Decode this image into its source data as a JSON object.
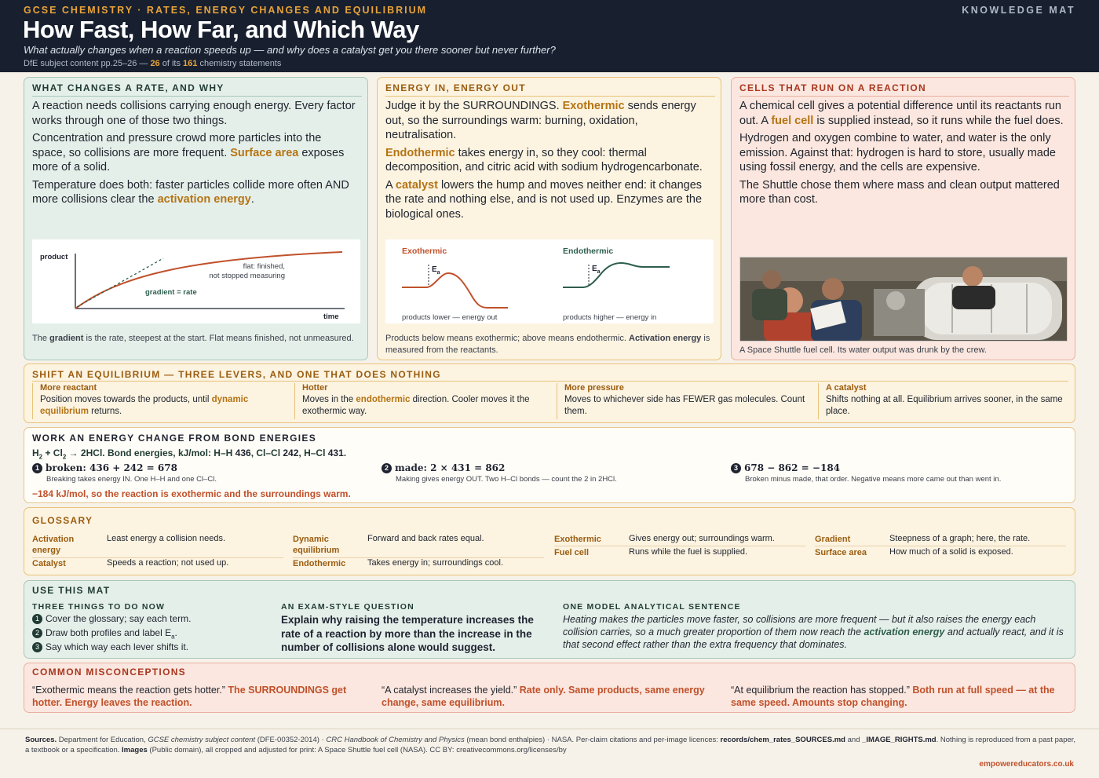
{
  "header": {
    "eyebrow": "GCSE CHEMISTRY · RATES, ENERGY CHANGES AND EQUILIBRIUM",
    "tag": "KNOWLEDGE MAT",
    "title": "How Fast, How Far, and Which Way",
    "subtitle": "What actually changes when a reaction speeds up — and why does a catalyst get you there sooner but never further?",
    "meta_prefix": "DfE subject content pp.25–26 — ",
    "meta_count": "26",
    "meta_mid": " of its ",
    "meta_total": "161",
    "meta_suffix": " chemistry statements"
  },
  "rate": {
    "title": "WHAT CHANGES A RATE, AND WHY",
    "p1": "A reaction needs collisions carrying enough energy. Every factor works through one of those two things.",
    "p2a": "Concentration and pressure crowd more particles into the space, so collisions are more frequent. ",
    "p2b": "Surface area",
    "p2c": " exposes more of a solid.",
    "p3a": "Temperature does both: faster particles collide more often AND more collisions clear the ",
    "p3b": "activation energy",
    "p3c": ".",
    "graph": {
      "ylabel": "product",
      "xlabel": "time",
      "flat_label_1": "flat: finished,",
      "flat_label_2": "not stopped measuring",
      "gradient_label": "gradient = rate"
    },
    "cap_a": "The ",
    "cap_b": "gradient",
    "cap_c": " is the rate, steepest at the start. Flat means finished, not unmeasured."
  },
  "energy": {
    "title": "ENERGY IN, ENERGY OUT",
    "p1a": "Judge it by the SURROUNDINGS. ",
    "p1b": "Exothermic",
    "p1c": " sends energy out, so the surroundings warm: burning, oxidation, neutralisation.",
    "p2a": "Endothermic",
    "p2b": " takes energy in, so they cool: thermal decomposition, and citric acid with sodium hydrogencarbonate.",
    "p3a": "A ",
    "p3b": "catalyst",
    "p3c": " lowers the hump and moves neither end: it changes the rate and nothing else, and is not used up. Enzymes are the biological ones.",
    "exo_label": "Exothermic",
    "endo_label": "Endothermic",
    "ea": "E",
    "ea_sub": "a",
    "exo_caption": "products lower — energy out",
    "endo_caption": "products higher — energy in",
    "cap_a": "Products below means exothermic; above means endothermic. ",
    "cap_b": "Activation energy",
    "cap_c": " is measured from the reactants."
  },
  "cells": {
    "title": "CELLS THAT RUN ON A REACTION",
    "p1a": "A chemical cell gives a potential difference until its reactants run out. A ",
    "p1b": "fuel cell",
    "p1c": " is supplied instead, so it runs while the fuel does.",
    "p2": "Hydrogen and oxygen combine to water, and water is the only emission. Against that: hydrogen is hard to store, usually made using fossil energy, and the cells are expensive.",
    "p3": "The Shuttle chose them where mass and clean output mattered more than cost.",
    "photo_caption": "A Space Shuttle fuel cell. Its water output was drunk by the crew."
  },
  "equilibrium": {
    "title": "SHIFT AN EQUILIBRIUM — THREE LEVERS, AND ONE THAT DOES NOTHING",
    "levers": [
      {
        "title": "More reactant",
        "d1": "Position moves towards the products, until ",
        "hl": "dynamic equilibrium",
        "d2": " returns."
      },
      {
        "title": "Hotter",
        "d1": "Moves in the ",
        "hl": "endothermic",
        "d2": " direction. Cooler moves it the exothermic way."
      },
      {
        "title": "More pressure",
        "d1": "Moves to whichever side has FEWER gas molecules. Count them.",
        "hl": "",
        "d2": ""
      },
      {
        "title": "A catalyst",
        "d1": "Shifts nothing at all. Equilibrium arrives sooner, in the same place.",
        "hl": "",
        "d2": ""
      }
    ]
  },
  "bond": {
    "title": "WORK AN ENERGY CHANGE FROM BOND ENERGIES",
    "eq_main": "H",
    "eq_text": " + Cl",
    "eq_rest": " → 2HCl. Bond energies, kJ/mol: H–H ",
    "hh": "436",
    "clcl_t": ", Cl–Cl ",
    "clcl": "242",
    "hcl_t": ", H–Cl ",
    "hcl": "431",
    "eq_end": ".",
    "steps": [
      {
        "n": "1",
        "head": "broken: 436 + 242 = 678",
        "desc": "Breaking takes energy IN. One H–H and one Cl–Cl."
      },
      {
        "n": "2",
        "head": "made: 2 × 431 = 862",
        "desc": "Making gives energy OUT. Two H–Cl bonds — count the 2 in 2HCl."
      },
      {
        "n": "3",
        "head": "678 − 862 = −184",
        "desc": "Broken minus made, that order. Negative means more came out than went in."
      }
    ],
    "conclusion": "−184 kJ/mol, so the reaction is exothermic and the surroundings warm."
  },
  "glossary": {
    "title": "GLOSSARY",
    "items": [
      {
        "term": "Activation energy",
        "def": "Least energy a collision needs."
      },
      {
        "term": "Catalyst",
        "def": "Speeds a reaction; not used up."
      },
      {
        "term": "Dynamic equilibrium",
        "def": "Forward and back rates equal."
      },
      {
        "term": "Endothermic",
        "def": "Takes energy in; surroundings cool."
      },
      {
        "term": "Exothermic",
        "def": "Gives energy out; surroundings warm."
      },
      {
        "term": "Fuel cell",
        "def": "Runs while the fuel is supplied."
      },
      {
        "term": "Gradient",
        "def": "Steepness of a graph; here, the rate."
      },
      {
        "term": "Surface area",
        "def": "How much of a solid is exposed."
      }
    ]
  },
  "use": {
    "title": "USE THIS MAT",
    "col1_head": "THREE THINGS TO DO NOW",
    "todo": [
      "Cover the glossary; say each term.",
      "Draw both profiles and label E",
      "Say which way each lever shifts it."
    ],
    "todo_sub": "a",
    "todo_end": ".",
    "col2_head": "AN EXAM-STYLE QUESTION",
    "question": "Explain why raising the temperature increases the rate of a reaction by more than the increase in the number of collisions alone would suggest.",
    "col3_head": "ONE MODEL ANALYTICAL SENTENCE",
    "model_a": "Heating makes the particles move faster, so collisions are more frequent — but it also raises the energy each collision carries, so a much greater proportion of them now reach the ",
    "model_b": "activation energy",
    "model_c": " and actually react, and it is that second effect rather than the extra frequency that dominates."
  },
  "misconceptions": {
    "title": "COMMON MISCONCEPTIONS",
    "items": [
      {
        "q": "“Exothermic means the reaction gets hotter.” ",
        "a": "The SURROUNDINGS get hotter. Energy leaves the reaction."
      },
      {
        "q": "“A catalyst increases the yield.” ",
        "a": "Rate only. Same products, same energy change, same equilibrium."
      },
      {
        "q": "“At equilibrium the reaction has stopped.” ",
        "a": "Both run at full speed — at the same speed. Amounts stop changing."
      }
    ]
  },
  "footer": {
    "sources_label": "Sources.",
    "s1": " Department for Education, ",
    "s1i": "GCSE chemistry subject content",
    "s2": " (DFE-00352-2014) · ",
    "s2i": "CRC Handbook of Chemistry and Physics",
    "s3": " (mean bond enthalpies) · NASA. Per-claim citations and per-image licences: ",
    "f1": "records/chem_rates_SOURCES.md",
    "s4": " and ",
    "f2": "_IMAGE_RIGHTS.md",
    "s5": ". Nothing is reproduced from a past paper, a textbook or a specification. ",
    "images_label": "Images",
    "s6": " (Public domain), all cropped and adjusted for print: A Space Shuttle fuel cell (NASA). CC BY: creativecommons.org/licenses/by",
    "site": "empowereducators.co.uk"
  },
  "colors": {
    "navy": "#18202f",
    "amber": "#e8a33a",
    "rust": "#c0512b",
    "green": "#2e5e4d"
  }
}
